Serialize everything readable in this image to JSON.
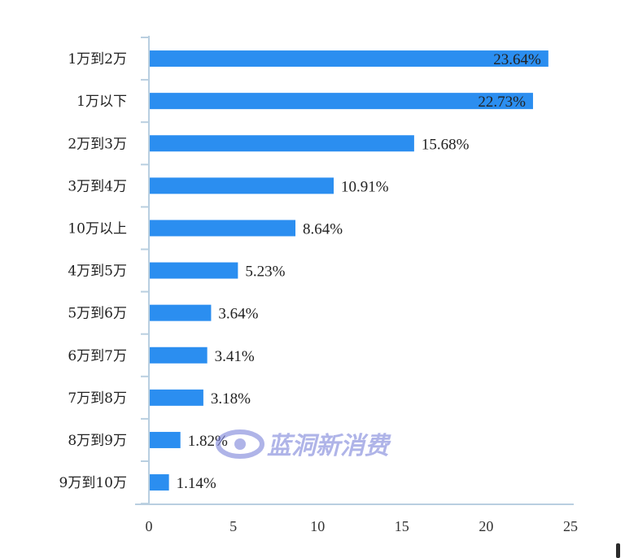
{
  "chart_data": {
    "type": "bar",
    "orientation": "horizontal",
    "categories": [
      "1万到2万",
      "1万以下",
      "2万到3万",
      "3万到4万",
      "10万以上",
      "4万到5万",
      "5万到6万",
      "6万到7万",
      "7万到8万",
      "8万到9万",
      "9万到10万"
    ],
    "values": [
      23.64,
      22.73,
      15.68,
      10.91,
      8.64,
      5.23,
      3.64,
      3.41,
      3.18,
      1.82,
      1.14
    ],
    "value_labels": [
      "23.64%",
      "22.73%",
      "15.68%",
      "10.91%",
      "8.64%",
      "5.23%",
      "3.64%",
      "3.41%",
      "3.18%",
      "1.82%",
      "1.14%"
    ],
    "x_ticks": [
      "0",
      "5",
      "10",
      "15",
      "20",
      "25"
    ],
    "xlim": [
      0,
      25
    ],
    "title": "",
    "xlabel": "",
    "ylabel": "",
    "grid": false,
    "bar_color": "#2b8ef0"
  },
  "watermark": {
    "text": "蓝洞新消费",
    "color": "#6f78d6"
  }
}
